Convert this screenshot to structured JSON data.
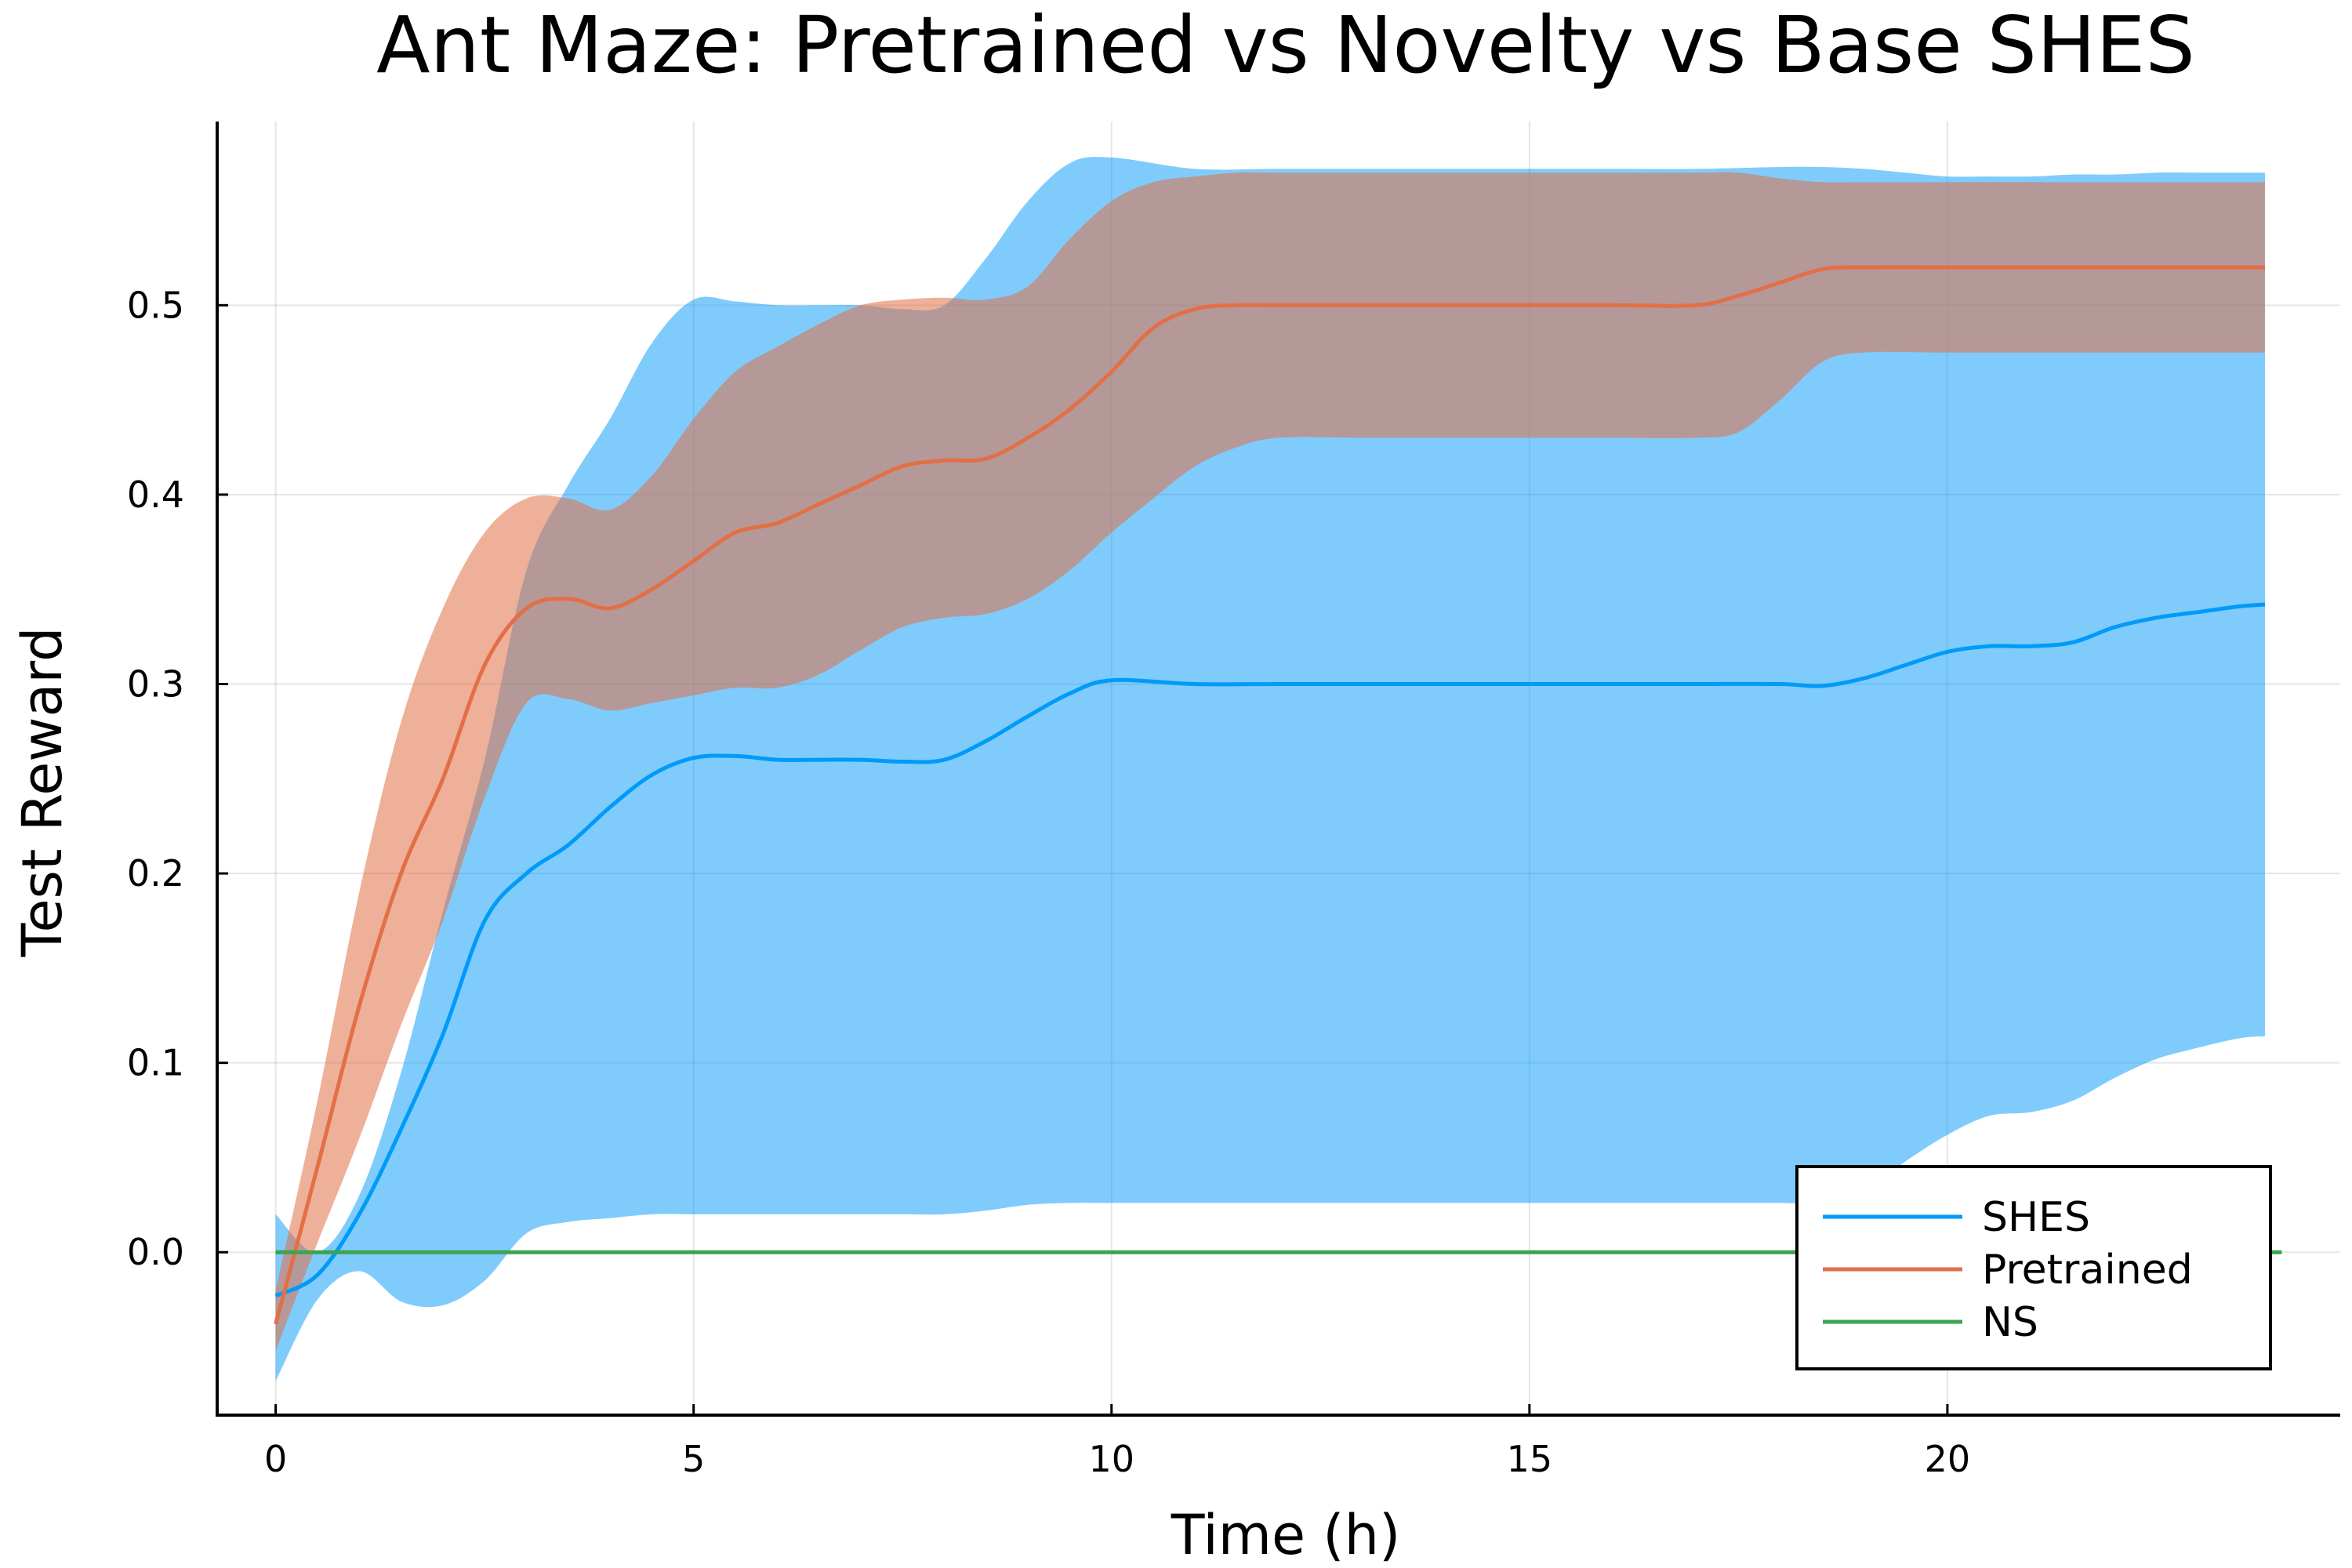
{
  "chart_data": {
    "type": "line",
    "title": "Ant Maze: Pretrained vs Novelty vs Base SHES",
    "xlabel": "Time (h)",
    "ylabel": "Test Reward",
    "xlim": [
      -0.7,
      24.7
    ],
    "ylim": [
      -0.086,
      0.597
    ],
    "xticks": [
      0,
      5,
      10,
      15,
      20
    ],
    "xtick_labels": [
      "0",
      "5",
      "10",
      "15",
      "20"
    ],
    "yticks": [
      0.0,
      0.1,
      0.2,
      0.3,
      0.4,
      0.5
    ],
    "ytick_labels": [
      "0.0",
      "0.1",
      "0.2",
      "0.3",
      "0.4",
      "0.5"
    ],
    "grid": true,
    "legend_position": "bottom-right",
    "series": [
      {
        "name": "SHES",
        "color": "#009af9",
        "band_opacity": 0.5,
        "x": [
          0,
          0.5,
          1,
          1.5,
          2,
          2.5,
          3,
          3.5,
          4,
          4.5,
          5,
          5.5,
          6,
          6.5,
          7,
          7.5,
          8,
          8.5,
          9,
          9.5,
          10,
          11,
          12,
          13,
          14,
          15,
          16,
          17,
          18,
          18.5,
          19,
          19.5,
          20,
          20.5,
          21,
          21.5,
          22,
          22.5,
          23,
          23.5,
          23.8
        ],
        "y": [
          -0.023,
          -0.012,
          0.02,
          0.065,
          0.115,
          0.175,
          0.2,
          0.215,
          0.235,
          0.252,
          0.261,
          0.262,
          0.26,
          0.26,
          0.26,
          0.259,
          0.26,
          0.27,
          0.283,
          0.295,
          0.302,
          0.3,
          0.3,
          0.3,
          0.3,
          0.3,
          0.3,
          0.3,
          0.3,
          0.299,
          0.303,
          0.31,
          0.317,
          0.32,
          0.32,
          0.322,
          0.33,
          0.335,
          0.338,
          0.341,
          0.342
        ],
        "upper": [
          0.02,
          0.0,
          0.03,
          0.095,
          0.18,
          0.26,
          0.36,
          0.405,
          0.44,
          0.48,
          0.503,
          0.502,
          0.5,
          0.5,
          0.5,
          0.498,
          0.5,
          0.525,
          0.555,
          0.575,
          0.578,
          0.572,
          0.572,
          0.572,
          0.572,
          0.572,
          0.572,
          0.572,
          0.573,
          0.573,
          0.572,
          0.57,
          0.568,
          0.568,
          0.568,
          0.569,
          0.569,
          0.57,
          0.57,
          0.57,
          0.57
        ],
        "lower": [
          -0.068,
          -0.025,
          -0.01,
          -0.026,
          -0.028,
          -0.015,
          0.01,
          0.016,
          0.018,
          0.02,
          0.02,
          0.02,
          0.02,
          0.02,
          0.02,
          0.02,
          0.02,
          0.022,
          0.025,
          0.026,
          0.026,
          0.026,
          0.026,
          0.026,
          0.026,
          0.026,
          0.026,
          0.026,
          0.026,
          0.026,
          0.032,
          0.048,
          0.062,
          0.072,
          0.074,
          0.08,
          0.092,
          0.102,
          0.108,
          0.113,
          0.114
        ]
      },
      {
        "name": "Pretrained",
        "color": "#e26f46",
        "band_opacity": 0.55,
        "x": [
          0,
          0.5,
          1,
          1.5,
          2,
          2.5,
          3,
          3.5,
          4,
          4.5,
          5,
          5.5,
          6,
          6.5,
          7,
          7.5,
          8,
          8.5,
          9,
          9.5,
          10,
          10.5,
          11,
          11.5,
          12,
          13,
          14,
          15,
          16,
          17,
          17.5,
          18,
          18.5,
          19,
          20,
          21,
          22,
          23,
          23.8
        ],
        "y": [
          -0.038,
          0.045,
          0.13,
          0.2,
          0.25,
          0.31,
          0.34,
          0.345,
          0.34,
          0.35,
          0.365,
          0.38,
          0.385,
          0.395,
          0.405,
          0.415,
          0.418,
          0.419,
          0.43,
          0.445,
          0.465,
          0.488,
          0.498,
          0.5,
          0.5,
          0.5,
          0.5,
          0.5,
          0.5,
          0.5,
          0.505,
          0.512,
          0.519,
          0.52,
          0.52,
          0.52,
          0.52,
          0.52,
          0.52
        ],
        "upper": [
          -0.02,
          0.08,
          0.19,
          0.28,
          0.34,
          0.38,
          0.398,
          0.398,
          0.392,
          0.41,
          0.44,
          0.465,
          0.478,
          0.49,
          0.5,
          0.503,
          0.504,
          0.503,
          0.51,
          0.535,
          0.555,
          0.565,
          0.568,
          0.57,
          0.57,
          0.57,
          0.57,
          0.57,
          0.57,
          0.57,
          0.57,
          0.567,
          0.565,
          0.565,
          0.565,
          0.565,
          0.565,
          0.565,
          0.565
        ],
        "lower": [
          -0.052,
          0.005,
          0.06,
          0.12,
          0.175,
          0.24,
          0.29,
          0.292,
          0.286,
          0.29,
          0.294,
          0.298,
          0.298,
          0.305,
          0.318,
          0.33,
          0.335,
          0.337,
          0.345,
          0.36,
          0.38,
          0.398,
          0.415,
          0.425,
          0.43,
          0.43,
          0.43,
          0.43,
          0.43,
          0.43,
          0.433,
          0.45,
          0.47,
          0.475,
          0.475,
          0.475,
          0.475,
          0.475,
          0.475
        ]
      },
      {
        "name": "NS",
        "color": "#3da44d",
        "x": [
          0,
          24
        ],
        "y": [
          0,
          0
        ]
      }
    ]
  }
}
